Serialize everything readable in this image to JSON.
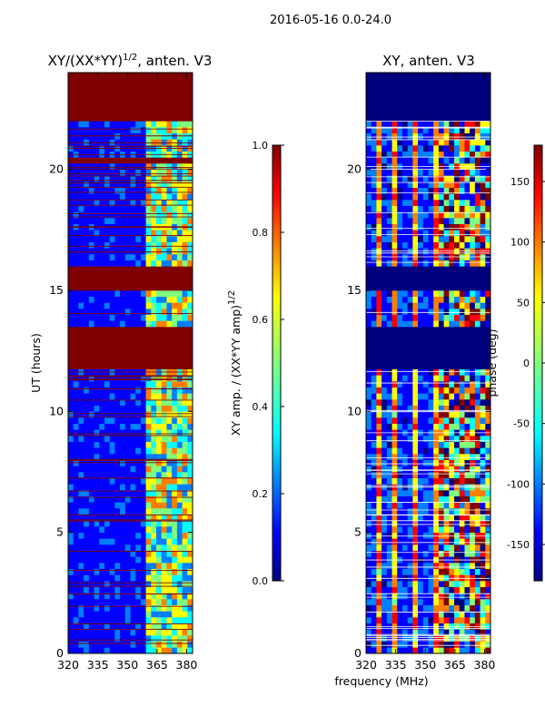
{
  "figure_title": "2016-05-16 0.0-24.0",
  "colormap": [
    "#00007f",
    "#0000ff",
    "#007fff",
    "#00ffff",
    "#7fff7f",
    "#ffff00",
    "#ff7f00",
    "#ff0000",
    "#7f0000"
  ],
  "chart_data": [
    {
      "type": "heatmap",
      "title_main": "XY/(XX*YY)",
      "title_sup": "1/2",
      "title_rest": ", anten. V3",
      "xlabel": "",
      "ylabel": "UT (hours)",
      "xlim": [
        320,
        383
      ],
      "ylim": [
        0,
        24
      ],
      "x_ticks": [
        320,
        335,
        350,
        365,
        380
      ],
      "y_ticks": [
        0,
        5,
        10,
        15,
        20
      ],
      "colorbar_label_main": "XY amp. / (XX*YY amp)",
      "colorbar_label_sup": "1/2",
      "clim": [
        0.0,
        1.0
      ],
      "colorbar_ticks": [
        "0.0",
        "0.2",
        "0.4",
        "0.6",
        "0.8",
        "1.0"
      ],
      "saturated_ut_ranges": [
        [
          11.8,
          13.6
        ],
        [
          15.1,
          16.1
        ],
        [
          20.3,
          20.5
        ],
        [
          22.0,
          24.0
        ]
      ],
      "active_band_mhz": [
        360,
        383
      ]
    },
    {
      "type": "heatmap",
      "title_main": "XY, anten. V3",
      "xlabel": "frequency (MHz)",
      "ylabel": "",
      "xlim": [
        320,
        383
      ],
      "ylim": [
        0,
        24
      ],
      "x_ticks": [
        320,
        335,
        350,
        365,
        380
      ],
      "y_ticks": [
        0,
        5,
        10,
        15,
        20
      ],
      "colorbar_label_main": "phase (deg)",
      "clim": [
        -180,
        180
      ],
      "colorbar_ticks": [
        "-150",
        "-100",
        "-50",
        "0",
        "50",
        "100",
        "150"
      ],
      "blank_ut_ranges": [
        [
          11.8,
          13.6
        ],
        [
          15.1,
          16.1
        ],
        [
          22.0,
          24.0
        ]
      ],
      "active_band_mhz": [
        360,
        383
      ]
    }
  ]
}
